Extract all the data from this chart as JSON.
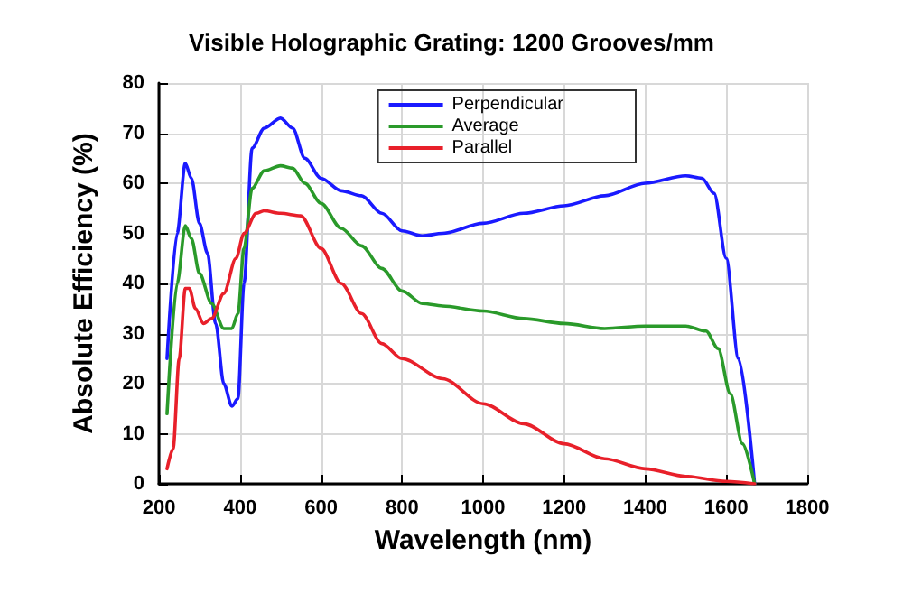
{
  "chart_data": {
    "type": "line",
    "title": "Visible Holographic Grating: 1200 Grooves/mm",
    "xlabel": "Wavelength (nm)",
    "ylabel": "Absolute Efficiency (%)",
    "xlim": [
      200,
      1800
    ],
    "xticks": [
      200,
      400,
      600,
      800,
      1000,
      1200,
      1400,
      1600,
      1800
    ],
    "ylim": [
      0,
      80
    ],
    "yticks": [
      0,
      10,
      20,
      30,
      40,
      50,
      60,
      70,
      80
    ],
    "grid": true,
    "legend": "top right",
    "marker": "none",
    "line_style": "solid",
    "series": [
      {
        "name": "Perpendicular",
        "color": "#1a1aff",
        "x": [
          220,
          245,
          265,
          280,
          300,
          320,
          340,
          360,
          380,
          395,
          410,
          430,
          460,
          500,
          530,
          560,
          600,
          650,
          700,
          750,
          800,
          850,
          900,
          1000,
          1100,
          1200,
          1300,
          1400,
          1500,
          1540,
          1570,
          1600,
          1630,
          1670
        ],
        "values": [
          25,
          50,
          64,
          61,
          52,
          46,
          32,
          20,
          15.5,
          17,
          40,
          67,
          71,
          73,
          71,
          65,
          61,
          58.5,
          57.5,
          54,
          50.5,
          49.5,
          50,
          52,
          54,
          55.5,
          57.5,
          60,
          61.5,
          61,
          58,
          45,
          25,
          0
        ]
      },
      {
        "name": "Average",
        "color": "#2a9a2a",
        "x": [
          220,
          245,
          265,
          280,
          300,
          330,
          360,
          380,
          395,
          410,
          430,
          460,
          500,
          530,
          560,
          600,
          650,
          700,
          750,
          800,
          850,
          900,
          1000,
          1100,
          1200,
          1300,
          1400,
          1500,
          1550,
          1580,
          1610,
          1640,
          1670
        ],
        "values": [
          14,
          40,
          51.5,
          49,
          42,
          36,
          31,
          31,
          34,
          47,
          59,
          62.5,
          63.5,
          63,
          60,
          56,
          51,
          47.5,
          43,
          38.5,
          36,
          35.5,
          34.5,
          33,
          32,
          31,
          31.5,
          31.5,
          30.5,
          27,
          18,
          8,
          0
        ]
      },
      {
        "name": "Parallel",
        "color": "#e8202a",
        "x": [
          220,
          235,
          250,
          265,
          275,
          290,
          310,
          330,
          360,
          390,
          410,
          440,
          460,
          500,
          550,
          600,
          650,
          700,
          750,
          800,
          900,
          1000,
          1100,
          1200,
          1300,
          1400,
          1500,
          1600,
          1670
        ],
        "values": [
          3,
          7,
          25,
          39,
          39,
          35,
          32,
          33,
          38,
          45,
          50,
          54,
          54.5,
          54,
          53.5,
          47,
          40,
          34,
          28,
          25,
          21,
          16,
          12,
          8,
          5,
          3,
          1.5,
          0.5,
          0
        ]
      }
    ]
  }
}
